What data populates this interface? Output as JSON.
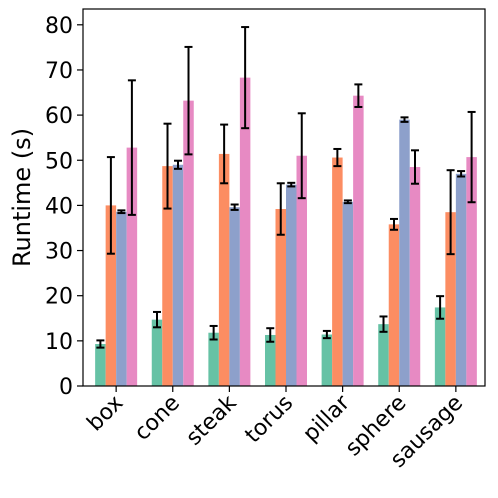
{
  "chart_data": {
    "type": "bar",
    "ylabel": "Runtime (s)",
    "ylim": [
      0,
      83.5
    ],
    "yticks": [
      0,
      10,
      20,
      30,
      40,
      50,
      60,
      70,
      80
    ],
    "categories": [
      "box",
      "cone",
      "steak",
      "torus",
      "pillar",
      "sphere",
      "sausage"
    ],
    "grid": false,
    "series": [
      {
        "color": "#66c2a5",
        "values": [
          9.3,
          14.7,
          11.8,
          11.3,
          11.4,
          13.7,
          17.4
        ],
        "errors": [
          0.8,
          1.7,
          1.5,
          1.5,
          0.8,
          1.7,
          2.5
        ]
      },
      {
        "color": "#fc8d62",
        "values": [
          40.0,
          48.7,
          51.4,
          39.2,
          50.6,
          35.8,
          38.5
        ],
        "errors": [
          10.7,
          9.4,
          6.5,
          5.7,
          1.9,
          1.2,
          9.3
        ]
      },
      {
        "color": "#8da0cb",
        "values": [
          38.6,
          49.0,
          39.6,
          44.6,
          40.8,
          59.0,
          47.0
        ],
        "errors": [
          0.3,
          0.9,
          0.6,
          0.4,
          0.3,
          0.5,
          0.6
        ]
      },
      {
        "color": "#e78ac3",
        "values": [
          52.8,
          63.2,
          68.3,
          51.0,
          64.3,
          48.5,
          50.7
        ],
        "errors": [
          14.9,
          11.9,
          11.2,
          9.4,
          2.5,
          3.7,
          10.0
        ]
      }
    ]
  }
}
